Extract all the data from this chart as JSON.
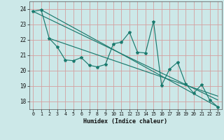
{
  "xlabel": "Humidex (Indice chaleur)",
  "bg_color": "#cce8e8",
  "line_color": "#1a7a6e",
  "grid_color": "#d4a0a0",
  "ylim": [
    17.5,
    24.5
  ],
  "xlim": [
    -0.5,
    23.5
  ],
  "yticks": [
    18,
    19,
    20,
    21,
    22,
    23,
    24
  ],
  "xticks": [
    0,
    1,
    2,
    3,
    4,
    5,
    6,
    7,
    8,
    9,
    10,
    11,
    12,
    13,
    14,
    15,
    16,
    17,
    18,
    19,
    20,
    21,
    22,
    23
  ],
  "series1_x": [
    0,
    1,
    2,
    3,
    4,
    5,
    6,
    7,
    8,
    9,
    10,
    11,
    12,
    13,
    14,
    15,
    16,
    17,
    18,
    19,
    20,
    21,
    22,
    23
  ],
  "series1_y": [
    23.85,
    23.95,
    22.1,
    21.55,
    20.7,
    20.65,
    20.85,
    20.35,
    20.25,
    20.4,
    21.75,
    21.85,
    22.5,
    21.2,
    21.15,
    23.2,
    19.05,
    20.1,
    20.55,
    19.15,
    18.55,
    19.1,
    18.1,
    17.65
  ],
  "trend1_x": [
    0,
    23
  ],
  "trend1_y": [
    23.85,
    18.1
  ],
  "trend2_x": [
    1,
    23
  ],
  "trend2_y": [
    23.95,
    17.65
  ],
  "trend3_x": [
    2,
    23
  ],
  "trend3_y": [
    22.1,
    18.35
  ]
}
